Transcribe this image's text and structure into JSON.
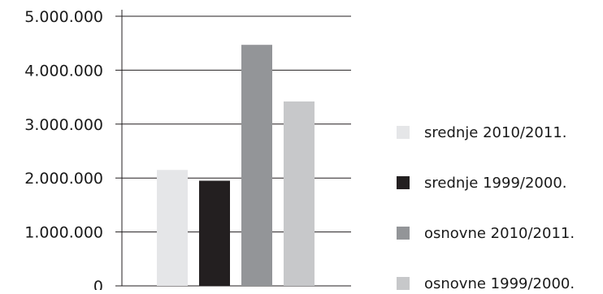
{
  "chart_data": {
    "type": "bar",
    "categories": [
      ""
    ],
    "series": [
      {
        "name": "srednje 2010/2011.",
        "values": [
          2150000
        ],
        "color": "#e5e6e8"
      },
      {
        "name": "srednje 1999/2000.",
        "values": [
          1950000
        ],
        "color": "#231f20"
      },
      {
        "name": "osnovne 2010/2011.",
        "values": [
          4470000
        ],
        "color": "#939598"
      },
      {
        "name": "osnovne 1999/2000.",
        "values": [
          3420000
        ],
        "color": "#c7c8ca"
      }
    ],
    "y_ticks": [
      "0",
      "1.000.000",
      "2.000.000",
      "3.000.000",
      "4.000.000",
      "5.000.000"
    ],
    "ylim": [
      0,
      5000000
    ],
    "grid": true,
    "legend_position": "right",
    "title": "",
    "xlabel": "",
    "ylabel": ""
  }
}
